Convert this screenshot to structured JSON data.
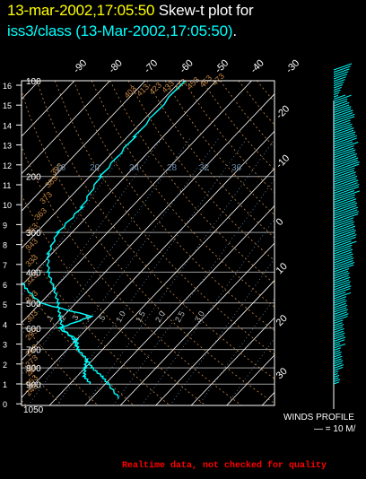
{
  "title": {
    "date_time": "13-mar-2002,17:05:50",
    "plot_label": "Skew-t plot for",
    "source": "iss3/class (13-Mar-2002,17:05:50)",
    "period": "."
  },
  "winds": {
    "label": "WINDS PROFILE",
    "scale": "— = 10 M/"
  },
  "footer": "Realtime data, not checked for quality",
  "colors": {
    "background": "#000000",
    "frame": "#ffffff",
    "isobar": "#9a9a9a",
    "isotherm": "#ffffff",
    "dry_adiabat": "#c88844",
    "moist_adiabat": "#bbbbbb",
    "mixing_ratio": "#6a8aaa",
    "sounding": "#00ffff",
    "title_date": "#ffff00",
    "title_text": "#ffffff",
    "title_source": "#00ffff",
    "footer": "#ff0000"
  },
  "chart_data": {
    "type": "skew-t",
    "pressure_levels": [
      "100",
      "200",
      "300",
      "400",
      "500",
      "600",
      "700",
      "800",
      "900",
      "1050"
    ],
    "temp_ticks": [
      "-90",
      "-80",
      "-70",
      "-60",
      "-50",
      "-40",
      "-30"
    ],
    "right_temp_labels": [
      "-20",
      "-10",
      "0",
      "10",
      "20",
      "30"
    ],
    "height_ticks": [
      "16",
      "15",
      "14",
      "13",
      "12",
      "11",
      "10",
      "9",
      "8",
      "7",
      "6",
      "5",
      "4",
      "3",
      "2",
      "1",
      "0"
    ],
    "dry_adiabat_labels": [
      "473",
      "463",
      "453",
      "443",
      "433",
      "423",
      "413",
      "403",
      "393",
      "383",
      "373",
      "363",
      "353",
      "343",
      "333",
      "323",
      "313",
      "303",
      "293",
      "283",
      "273",
      "263",
      "253",
      "243"
    ],
    "mixing_ratio_labels": [
      "36",
      "32",
      "28",
      "24",
      "20",
      "16"
    ],
    "moist_labels": [
      "3.0",
      "2.5",
      "2.0",
      "1.5",
      "1.0",
      ".5",
      ".4",
      ".3",
      ".2",
      ".1"
    ],
    "temperature_profile": [
      [
        1000,
        8
      ],
      [
        900,
        1
      ],
      [
        850,
        -3
      ],
      [
        800,
        -8
      ],
      [
        750,
        -12
      ],
      [
        700,
        -17
      ],
      [
        650,
        -21
      ],
      [
        600,
        -27
      ],
      [
        550,
        -31
      ],
      [
        500,
        -35
      ],
      [
        450,
        -40
      ],
      [
        400,
        -46
      ],
      [
        350,
        -51
      ],
      [
        300,
        -54
      ],
      [
        250,
        -54
      ],
      [
        200,
        -57
      ],
      [
        150,
        -58
      ],
      [
        100,
        -59
      ]
    ],
    "dewpoint_profile": [
      [
        900,
        -4
      ],
      [
        850,
        -8
      ],
      [
        800,
        -10
      ],
      [
        750,
        -12
      ],
      [
        700,
        -17
      ],
      [
        650,
        -20
      ],
      [
        600,
        -28
      ],
      [
        550,
        -22
      ],
      [
        500,
        -40
      ],
      [
        450,
        -48
      ],
      [
        400,
        -55
      ]
    ],
    "wind_profile_kms": [
      0,
      16
    ]
  }
}
